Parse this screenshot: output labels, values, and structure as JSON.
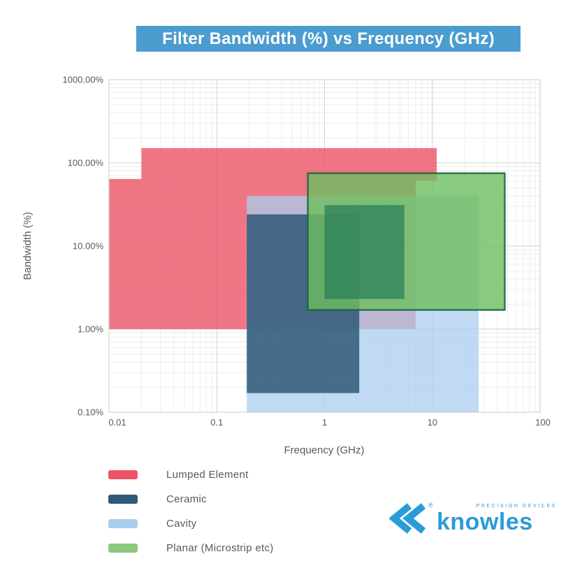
{
  "title": {
    "text": "Filter Bandwidth (%) vs Frequency (GHz)",
    "bg_color": "#4b9ccf",
    "text_color": "#ffffff"
  },
  "chart_data": {
    "type": "area",
    "subtype": "log-log-rect-regions",
    "title": "Filter Bandwidth (%) vs Frequency (GHz)",
    "xlabel": "Frequency (GHz)",
    "ylabel": "Bandwidth (%)",
    "x_scale": "log",
    "y_scale": "log",
    "x_range_ghz": [
      0.01,
      100
    ],
    "y_range_percent": [
      0.1,
      1000
    ],
    "x_ticks": [
      "0.01",
      "0.1",
      "1",
      "10",
      "100"
    ],
    "x_tick_values": [
      0.01,
      0.1,
      1,
      10,
      100
    ],
    "y_ticks": [
      "1000.00%",
      "100.00%",
      "10.00%",
      "1.00%",
      "0.10%"
    ],
    "y_tick_values": [
      1000,
      100,
      10,
      1,
      0.1
    ],
    "grid": true,
    "series": [
      {
        "name": "Lumped Element",
        "legend_color": "#ee5466",
        "fill": "rgba(238,84,102,0.80)",
        "shape": "polygon",
        "points_f_bw": [
          [
            0.01,
            64
          ],
          [
            0.02,
            64
          ],
          [
            0.02,
            150
          ],
          [
            11,
            150
          ],
          [
            11,
            61
          ],
          [
            7,
            61
          ],
          [
            7,
            1
          ],
          [
            0.01,
            1
          ]
        ],
        "summary": "frequency 0.01-11 GHz, bandwidth 1%-150%"
      },
      {
        "name": "Cavity",
        "legend_color": "#a9cdee",
        "fill": "rgba(169,205,238,0.75)",
        "shape": "rect",
        "f": [
          0.19,
          27
        ],
        "bw": [
          0.1,
          40
        ]
      },
      {
        "name": "Ceramic",
        "legend_color": "#2f5978",
        "fill": "rgba(47,89,120,0.85)",
        "shape": "rect",
        "f": [
          0.19,
          2.1
        ],
        "bw": [
          0.17,
          24
        ]
      },
      {
        "name": "Planar (Microstrip etc)",
        "legend_color": "#8bc97d",
        "fill": "rgba(110,190,95,0.80)",
        "stroke": "rgba(25,100,60,0.85)",
        "stroke_width": 2.5,
        "shape": "rect",
        "f": [
          0.7,
          47
        ],
        "bw": [
          1.7,
          75
        ]
      },
      {
        "name": "Planar (Microstrip etc) core",
        "legend_color": null,
        "fill": "rgba(45,130,90,0.78)",
        "shape": "rect",
        "f": [
          1.0,
          5.5
        ],
        "bw": [
          2.3,
          31
        ]
      }
    ]
  },
  "legend": {
    "items": [
      {
        "label": "Lumped Element",
        "color": "#ee5466"
      },
      {
        "label": "Ceramic",
        "color": "#2f5978"
      },
      {
        "label": "Cavity",
        "color": "#a9cdee"
      },
      {
        "label": "Planar (Microstrip etc)",
        "color": "#8bc97d"
      }
    ]
  },
  "logo": {
    "brand": "knowles",
    "tagline": "PRECISION DEVICES",
    "registered": "®",
    "color": "#2b9cd8"
  }
}
